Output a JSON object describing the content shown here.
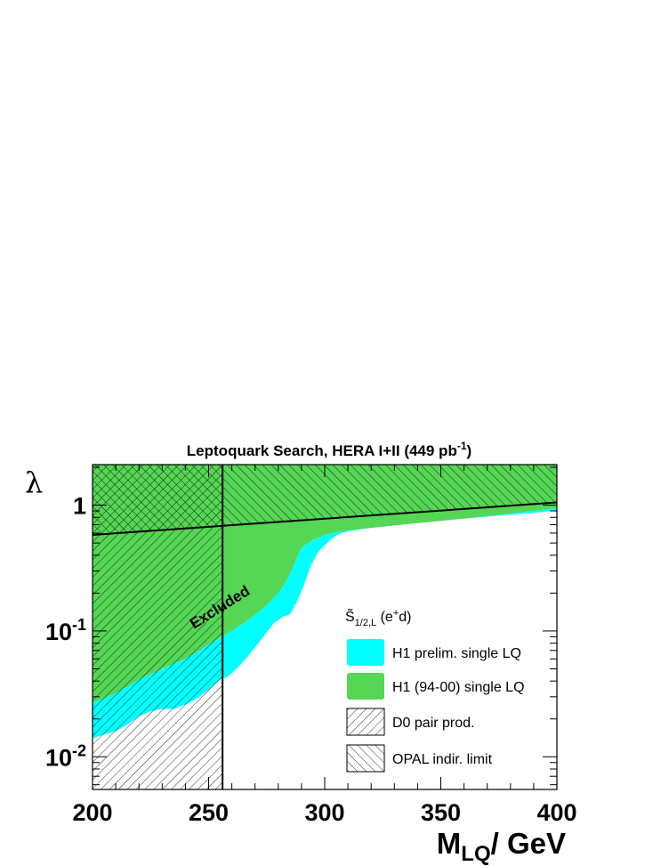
{
  "chart_data": {
    "type": "area",
    "title": {
      "main": "Leptoquark Search, HERA I+II (449 pb",
      "sup": "-1",
      "tail": ")"
    },
    "xlabel": {
      "main": "M",
      "sub": "LQ",
      "tail": "/ GeV"
    },
    "ylabel": "λ",
    "xlim": [
      200,
      400
    ],
    "ylim": [
      0.0055,
      2.1
    ],
    "y_scale": "log",
    "x_ticks": [
      {
        "value": 200,
        "label": "200"
      },
      {
        "value": 250,
        "label": "250"
      },
      {
        "value": 300,
        "label": "300"
      },
      {
        "value": 350,
        "label": "350"
      },
      {
        "value": 400,
        "label": "400"
      }
    ],
    "y_ticks": [
      {
        "value": 0.01,
        "base": "10",
        "exp": "-2"
      },
      {
        "value": 0.1,
        "base": "10",
        "exp": "-1"
      },
      {
        "value": 1,
        "base": "1",
        "exp": ""
      }
    ],
    "annotation": "Excluded",
    "legend": {
      "header": {
        "symbol": "S̃",
        "sub": "1/2,L",
        "mid": " (e",
        "sup": "+",
        "tail": "d)"
      },
      "placement": "center-right",
      "entries": [
        {
          "label": "H1 prelim. single LQ",
          "style": "fill",
          "color": "#00ffff"
        },
        {
          "label": "H1 (94-00) single LQ",
          "style": "fill",
          "color": "#55d655"
        },
        {
          "label": "D0 pair prod.",
          "style": "hatch-back"
        },
        {
          "label": "OPAL indir. limit",
          "style": "hatch-forward"
        }
      ]
    },
    "series": [
      {
        "name": "H1 prelim. single LQ",
        "color": "#00ffff",
        "x": [
          200,
          205,
          210,
          215,
          220,
          225,
          230,
          235,
          240,
          245,
          250,
          252,
          255,
          258,
          262,
          266,
          270,
          274,
          278,
          282,
          285,
          288,
          291,
          294,
          297,
          300,
          303,
          306,
          310,
          315,
          320,
          330,
          340,
          350,
          360,
          370,
          380,
          390,
          400
        ],
        "y": [
          0.014,
          0.015,
          0.016,
          0.018,
          0.021,
          0.023,
          0.024,
          0.024,
          0.026,
          0.029,
          0.034,
          0.037,
          0.041,
          0.043,
          0.05,
          0.06,
          0.074,
          0.092,
          0.115,
          0.13,
          0.135,
          0.17,
          0.23,
          0.33,
          0.42,
          0.48,
          0.54,
          0.59,
          0.62,
          0.64,
          0.66,
          0.69,
          0.72,
          0.75,
          0.78,
          0.81,
          0.84,
          0.87,
          0.91
        ]
      },
      {
        "name": "H1 (94-00) single LQ",
        "color": "#55d655",
        "x": [
          200,
          205,
          210,
          215,
          220,
          225,
          230,
          235,
          240,
          245,
          250,
          255,
          260,
          265,
          270,
          275,
          280,
          283,
          286,
          290,
          295,
          300,
          305,
          310,
          320,
          330,
          340,
          350,
          360,
          370,
          380,
          390,
          400
        ],
        "y": [
          0.027,
          0.029,
          0.032,
          0.036,
          0.041,
          0.045,
          0.05,
          0.055,
          0.06,
          0.068,
          0.078,
          0.089,
          0.1,
          0.115,
          0.135,
          0.16,
          0.2,
          0.24,
          0.31,
          0.46,
          0.53,
          0.58,
          0.61,
          0.63,
          0.66,
          0.69,
          0.72,
          0.75,
          0.78,
          0.82,
          0.86,
          0.9,
          0.95
        ]
      },
      {
        "name": "OPAL indir. limit",
        "x": [
          200,
          400
        ],
        "y": [
          0.58,
          1.05
        ]
      }
    ],
    "vertical_limit": {
      "name": "D0 pair prod.",
      "x": 256
    }
  }
}
